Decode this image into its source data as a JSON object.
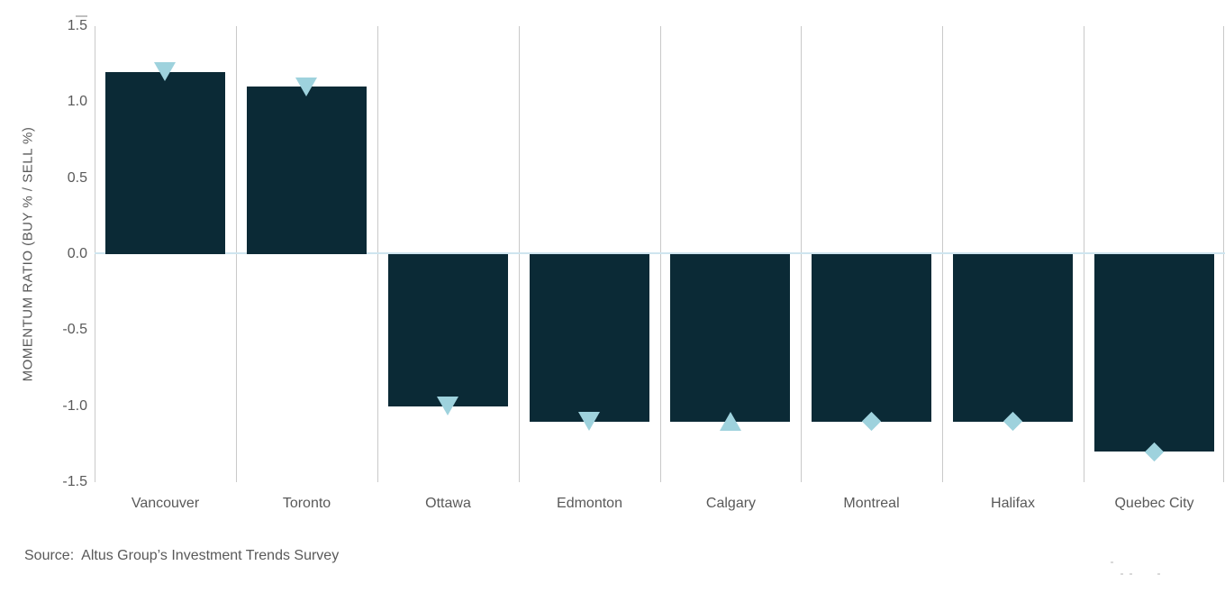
{
  "chart_data": {
    "type": "bar",
    "title": "",
    "categories": [
      "Vancouver",
      "Toronto",
      "Ottawa",
      "Edmonton",
      "Calgary",
      "Montreal",
      "Halifax",
      "Quebec City"
    ],
    "values": [
      1.2,
      1.1,
      -1.0,
      -1.1,
      -1.1,
      -1.1,
      -1.1,
      -1.3
    ],
    "markers": [
      "triangle-down",
      "triangle-down",
      "triangle-down",
      "triangle-down",
      "triangle-up",
      "diamond",
      "diamond",
      "diamond"
    ],
    "xlabel": "",
    "ylabel": "MOMENTUM RATIO (BUY % / SELL %)",
    "ylim": [
      -1.5,
      1.5
    ],
    "yticks": [
      1.5,
      1.0,
      0.5,
      0.0,
      -0.5,
      -1.0,
      -1.5
    ],
    "ytick_labels": [
      "1.5",
      "1.0",
      "0.5",
      "0.0",
      "-0.5",
      "-1.0",
      "-1.5"
    ],
    "grid": "vertical category separators, on",
    "legend": "none",
    "bar_color": "#0b2a36",
    "marker_color": "#9ed2dd",
    "zero_line_color": "#cfe5ef",
    "gridline_color": "#c9c9c9",
    "text_color": "#595959"
  },
  "source_line": "Source:  Altus Group’s Investment Trends Survey"
}
